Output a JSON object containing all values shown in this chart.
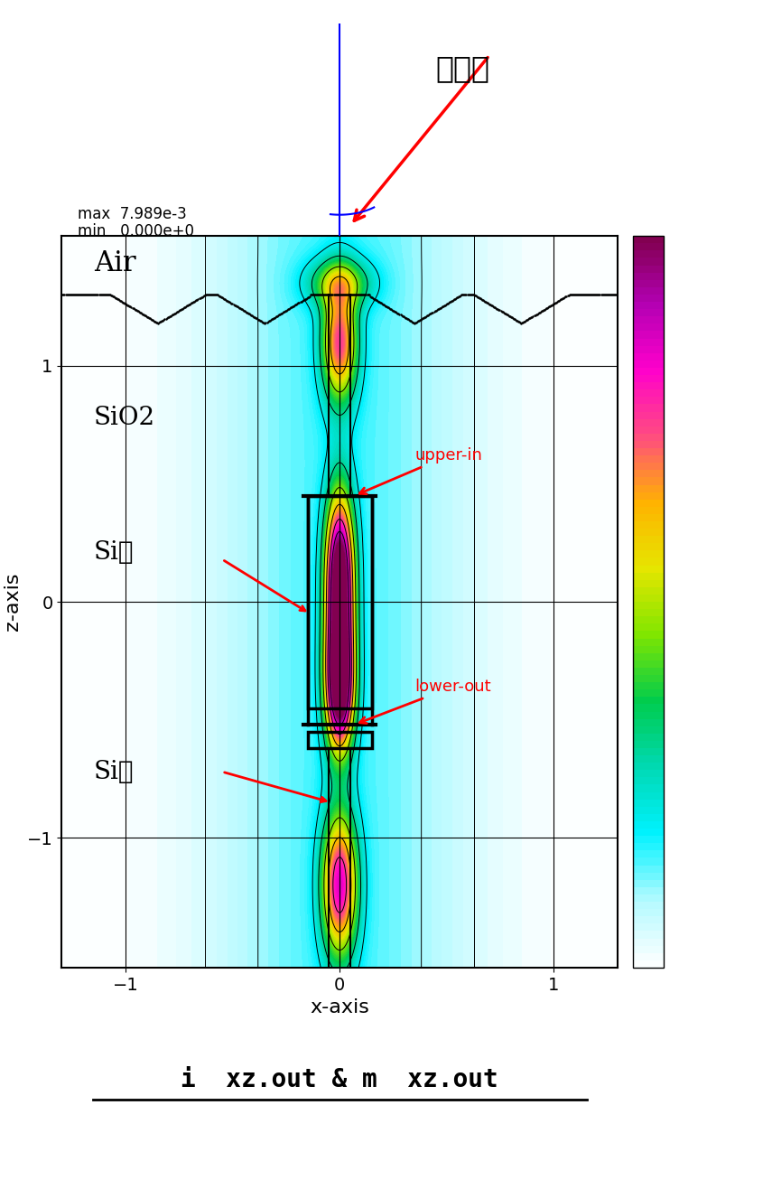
{
  "title": "i  xz.out & m  xz.out",
  "xlabel": "x-axis",
  "ylabel": "z-axis",
  "xlim": [
    -1.3,
    1.3
  ],
  "ylim": [
    -1.55,
    1.55
  ],
  "xticks": [
    -1,
    0,
    1
  ],
  "yticks": [
    -1,
    0,
    1
  ],
  "max_label": "max  7.989e-3",
  "min_label": "min   0.000e+0",
  "label_air": "Air",
  "label_sio2": "SiO2",
  "label_si_upper": "Si上",
  "label_si_lower": "Si下",
  "label_upper_in": "upper-in",
  "label_lower_out": "lower-out",
  "label_incident": "入射角",
  "background_color": "#ffffff",
  "colorbar_colors": [
    "#ffffff",
    "#e0f8ff",
    "#b0f0ff",
    "#80e8ff",
    "#40d8e0",
    "#00c8a0",
    "#40d060",
    "#a0e000",
    "#e8e000",
    "#ffb800",
    "#ff8000",
    "#ff4090",
    "#ff00c0",
    "#e000e0",
    "#c000a0",
    "#800060"
  ],
  "waveguide_color": "#000000",
  "contour_color": "#000000",
  "annotation_color": "#ff0000",
  "grid_color": "#000000"
}
